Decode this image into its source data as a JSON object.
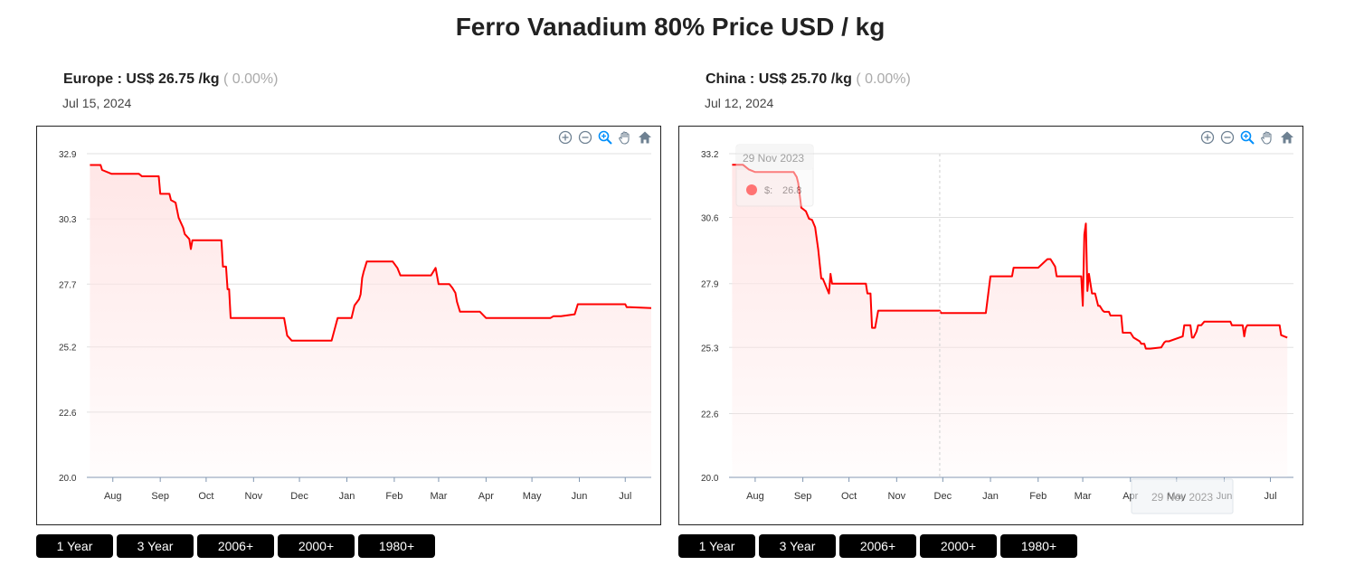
{
  "title": "Ferro Vanadium 80% Price USD / kg",
  "range_buttons": [
    "1 Year",
    "3 Year",
    "2006+",
    "2000+",
    "1980+"
  ],
  "colors": {
    "line": "#ff0000",
    "fill": "#ffe5e5",
    "grid": "#e0e0e0",
    "axis": "#8096b0"
  },
  "icons": [
    "zoom-in-icon",
    "zoom-out-icon",
    "zoom-selection-icon",
    "pan-hand-icon",
    "home-reset-icon"
  ],
  "chart_data": [
    {
      "type": "area",
      "region": "Europe",
      "currency": "US$",
      "price": "26.75",
      "unit": "/kg",
      "change": "( 0.00%)",
      "date": "Jul 15, 2024",
      "yticks": [
        "32.9",
        "30.3",
        "27.7",
        "25.2",
        "22.6",
        "20.0"
      ],
      "ylim": [
        20.0,
        32.9
      ],
      "xticks": [
        {
          "label": "Aug",
          "date": "2023-08-01"
        },
        {
          "label": "Sep",
          "date": "2023-09-01"
        },
        {
          "label": "Oct",
          "date": "2023-10-01"
        },
        {
          "label": "Nov",
          "date": "2023-11-01"
        },
        {
          "label": "Dec",
          "date": "2023-12-01"
        },
        {
          "label": "Jan",
          "date": "2024-01-01"
        },
        {
          "label": "Feb",
          "date": "2024-02-01"
        },
        {
          "label": "Mar",
          "date": "2024-03-01"
        },
        {
          "label": "Apr",
          "date": "2024-04-01"
        },
        {
          "label": "May",
          "date": "2024-05-01"
        },
        {
          "label": "Jun",
          "date": "2024-06-01"
        },
        {
          "label": "Jul",
          "date": "2024-07-01"
        }
      ],
      "xlim": [
        "2023-07-15",
        "2024-07-18"
      ],
      "series": [
        {
          "x": [
            "2023-07-17",
            "2023-07-24",
            "2023-07-25",
            "2023-07-31",
            "2023-08-18",
            "2023-08-20",
            "2023-08-31",
            "2023-09-01",
            "2023-09-07",
            "2023-09-08",
            "2023-09-11",
            "2023-09-13",
            "2023-09-16",
            "2023-09-17",
            "2023-09-20",
            "2023-09-21",
            "2023-09-22",
            "2023-09-23",
            "2023-10-11",
            "2023-10-12",
            "2023-10-14",
            "2023-10-15",
            "2023-10-16",
            "2023-10-17",
            "2023-11-21",
            "2023-11-23",
            "2023-11-26",
            "2023-12-22",
            "2023-12-26",
            "2024-01-04",
            "2024-01-06",
            "2024-01-09",
            "2024-01-10",
            "2024-01-11",
            "2024-01-12",
            "2024-01-14",
            "2024-01-31",
            "2024-02-03",
            "2024-02-05",
            "2024-02-25",
            "2024-02-28",
            "2024-03-01",
            "2024-03-08",
            "2024-03-10",
            "2024-03-12",
            "2024-03-13",
            "2024-03-15",
            "2024-03-28",
            "2024-04-01",
            "2024-05-13",
            "2024-05-15",
            "2024-05-20",
            "2024-05-29",
            "2024-05-31",
            "2024-07-01",
            "2024-07-02",
            "2024-07-04",
            "2024-07-18"
          ],
          "values": [
            32.45,
            32.45,
            32.25,
            32.1,
            32.1,
            32.0,
            32.0,
            31.3,
            31.3,
            31.05,
            30.95,
            30.35,
            29.95,
            29.7,
            29.5,
            29.1,
            29.45,
            29.45,
            29.45,
            28.4,
            28.4,
            27.5,
            27.5,
            26.35,
            26.35,
            25.65,
            25.45,
            25.45,
            26.35,
            26.35,
            26.85,
            27.1,
            27.3,
            27.95,
            28.2,
            28.6,
            28.6,
            28.35,
            28.05,
            28.05,
            28.35,
            27.7,
            27.7,
            27.55,
            27.35,
            27.0,
            26.6,
            26.6,
            26.35,
            26.35,
            26.42,
            26.42,
            26.5,
            26.9,
            26.9,
            26.78,
            26.78,
            26.75
          ]
        }
      ]
    },
    {
      "type": "area",
      "region": "China",
      "currency": "US$",
      "price": "25.70",
      "unit": "/kg",
      "change": "( 0.00%)",
      "date": "Jul 12, 2024",
      "yticks": [
        "33.2",
        "30.6",
        "27.9",
        "25.3",
        "22.6",
        "20.0"
      ],
      "ylim": [
        20.0,
        33.2
      ],
      "tooltip": {
        "date": "29 Nov 2023",
        "series_label": "$:",
        "value": "26.8"
      },
      "crosshair_label": "29 Nov 2023",
      "crosshair_date": "2023-11-29",
      "xticks": [
        {
          "label": "Aug",
          "date": "2023-08-01"
        },
        {
          "label": "Sep",
          "date": "2023-09-01"
        },
        {
          "label": "Oct",
          "date": "2023-10-01"
        },
        {
          "label": "Nov",
          "date": "2023-11-01"
        },
        {
          "label": "Dec",
          "date": "2023-12-01"
        },
        {
          "label": "Jan",
          "date": "2024-01-01"
        },
        {
          "label": "Feb",
          "date": "2024-02-01"
        },
        {
          "label": "Mar",
          "date": "2024-03-01"
        },
        {
          "label": "Apr",
          "date": "2024-04-01"
        },
        {
          "label": "May",
          "date": "2024-05-01"
        },
        {
          "label": "Jun",
          "date": "2024-06-01"
        },
        {
          "label": "Jul",
          "date": "2024-07-01"
        }
      ],
      "xlim": [
        "2023-07-15",
        "2024-07-16"
      ],
      "series": [
        {
          "x": [
            "2023-07-17",
            "2023-07-24",
            "2023-07-28",
            "2023-08-01",
            "2023-08-26",
            "2023-08-28",
            "2023-08-29",
            "2023-08-31",
            "2023-09-02",
            "2023-09-03",
            "2023-09-05",
            "2023-09-07",
            "2023-09-09",
            "2023-09-11",
            "2023-09-13",
            "2023-09-14",
            "2023-09-18",
            "2023-09-19",
            "2023-09-20",
            "2023-09-21",
            "2023-09-22",
            "2023-10-12",
            "2023-10-13",
            "2023-10-15",
            "2023-10-16",
            "2023-10-18",
            "2023-10-20",
            "2023-11-29",
            "2023-11-30",
            "2023-12-29",
            "2024-01-01",
            "2024-01-15",
            "2024-01-16",
            "2024-01-31",
            "2024-02-01",
            "2024-02-07",
            "2024-02-09",
            "2024-02-12",
            "2024-02-13",
            "2024-02-27",
            "2024-02-29",
            "2024-03-01",
            "2024-03-02",
            "2024-03-03",
            "2024-03-04",
            "2024-03-05",
            "2024-03-07",
            "2024-03-08",
            "2024-03-09",
            "2024-03-11",
            "2024-03-12",
            "2024-03-14",
            "2024-03-15",
            "2024-03-18",
            "2024-03-19",
            "2024-03-26",
            "2024-03-27",
            "2024-04-01",
            "2024-04-03",
            "2024-04-07",
            "2024-04-08",
            "2024-04-10",
            "2024-04-11",
            "2024-04-14",
            "2024-04-21",
            "2024-04-23",
            "2024-04-24",
            "2024-04-26",
            "2024-05-05",
            "2024-05-06",
            "2024-05-10",
            "2024-05-11",
            "2024-05-12",
            "2024-05-14",
            "2024-05-15",
            "2024-05-17",
            "2024-05-19",
            "2024-05-20",
            "2024-06-05",
            "2024-06-06",
            "2024-06-12",
            "2024-06-13",
            "2024-06-14",
            "2024-06-15",
            "2024-06-16",
            "2024-07-07",
            "2024-07-08",
            "2024-07-10",
            "2024-07-12"
          ],
          "values": [
            32.75,
            32.75,
            32.55,
            32.45,
            32.45,
            32.25,
            32.0,
            31.0,
            30.9,
            30.85,
            30.55,
            30.5,
            30.2,
            29.3,
            28.1,
            28.1,
            27.5,
            28.3,
            27.9,
            27.9,
            27.9,
            27.9,
            27.5,
            27.5,
            26.1,
            26.1,
            26.8,
            26.8,
            26.7,
            26.7,
            28.2,
            28.2,
            28.55,
            28.55,
            28.55,
            28.9,
            28.9,
            28.6,
            28.2,
            28.2,
            28.2,
            27.0,
            29.9,
            30.35,
            27.6,
            28.3,
            27.5,
            27.5,
            27.5,
            27.0,
            27.0,
            26.8,
            26.75,
            26.75,
            26.6,
            26.6,
            25.9,
            25.9,
            25.7,
            25.55,
            25.45,
            25.45,
            25.25,
            25.25,
            25.3,
            25.5,
            25.55,
            25.55,
            25.75,
            26.2,
            26.2,
            25.7,
            25.7,
            25.95,
            26.2,
            26.2,
            26.35,
            26.35,
            26.35,
            26.2,
            26.2,
            26.2,
            25.75,
            26.1,
            26.2,
            26.2,
            25.8,
            25.75,
            25.7
          ]
        }
      ]
    }
  ]
}
